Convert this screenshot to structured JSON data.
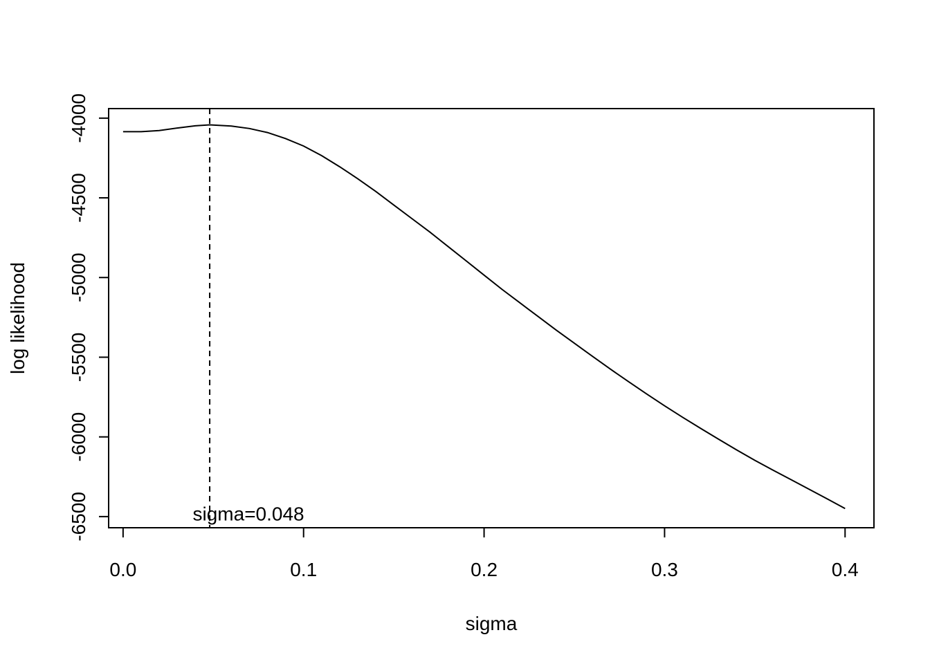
{
  "chart_data": {
    "type": "line",
    "title": "",
    "xlabel": "sigma",
    "ylabel": "log likelihood",
    "xlim": [
      -0.008,
      0.416
    ],
    "ylim": [
      -6570,
      -3940
    ],
    "x_ticks": [
      0.0,
      0.1,
      0.2,
      0.3,
      0.4
    ],
    "x_tick_labels": [
      "0.0",
      "0.1",
      "0.2",
      "0.3",
      "0.4"
    ],
    "y_ticks": [
      -4000,
      -4500,
      -5000,
      -5500,
      -6000,
      -6500
    ],
    "y_tick_labels": [
      "-4000",
      "-4500",
      "-5000",
      "-5500",
      "-6000",
      "-6500"
    ],
    "grid": false,
    "legend": "none",
    "line_color": "#000000",
    "series": [
      {
        "x": [
          0.0,
          0.01,
          0.02,
          0.03,
          0.04,
          0.048,
          0.06,
          0.07,
          0.08,
          0.09,
          0.1,
          0.11,
          0.12,
          0.13,
          0.14,
          0.15,
          0.16,
          0.17,
          0.18,
          0.19,
          0.2,
          0.21,
          0.22,
          0.23,
          0.24,
          0.25,
          0.26,
          0.27,
          0.28,
          0.29,
          0.3,
          0.31,
          0.32,
          0.33,
          0.34,
          0.35,
          0.36,
          0.37,
          0.38,
          0.39,
          0.4
        ],
        "y": [
          -4085,
          -4085,
          -4078,
          -4062,
          -4048,
          -4042,
          -4050,
          -4065,
          -4090,
          -4128,
          -4175,
          -4235,
          -4305,
          -4380,
          -4460,
          -4545,
          -4630,
          -4715,
          -4805,
          -4895,
          -4985,
          -5075,
          -5160,
          -5245,
          -5330,
          -5412,
          -5494,
          -5575,
          -5653,
          -5730,
          -5805,
          -5877,
          -5947,
          -6015,
          -6082,
          -6147,
          -6208,
          -6268,
          -6328,
          -6388,
          -6450
        ]
      }
    ],
    "vline": {
      "x": 0.048,
      "style": "dashed"
    },
    "annotation": {
      "text": "sigma=0.048",
      "x": 0.048,
      "y": -6480
    }
  }
}
